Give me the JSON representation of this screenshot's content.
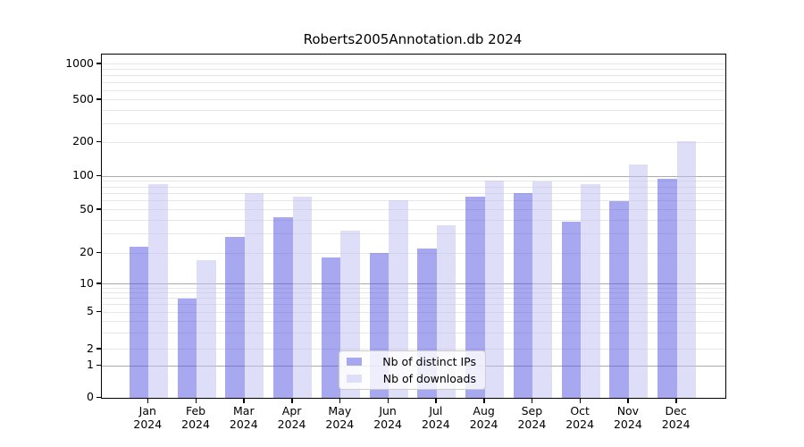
{
  "figure": {
    "background": "#ffffff"
  },
  "chart_data": {
    "type": "bar",
    "title": "Roberts2005Annotation.db 2024",
    "categories": [
      "Jan",
      "Feb",
      "Mar",
      "Apr",
      "May",
      "Jun",
      "Jul",
      "Aug",
      "Sep",
      "Oct",
      "Nov",
      "Dec"
    ],
    "x_tick_second_line": "2024",
    "series": [
      {
        "name": "Nb of distinct IPs",
        "swatch_color": "#a8a8f0",
        "fill": "rgba(81,81,225,0.5)",
        "values": [
          23,
          7,
          28,
          43,
          18,
          20,
          22,
          65,
          70,
          39,
          60,
          95
        ]
      },
      {
        "name": "Nb of downloads",
        "swatch_color": "#dedef8",
        "fill": "rgba(189,189,241,0.5)",
        "values": [
          85,
          17,
          71,
          65,
          32,
          61,
          36,
          91,
          89,
          84,
          126,
          205
        ]
      }
    ],
    "y_scale": "symlog",
    "y_ticks": [
      0,
      1,
      2,
      5,
      10,
      20,
      50,
      100,
      200,
      500,
      1000
    ],
    "y_major_gridlines": [
      1,
      10,
      100
    ],
    "y_minor_gridlines": [
      2,
      3,
      4,
      5,
      6,
      7,
      8,
      9,
      20,
      30,
      40,
      50,
      60,
      70,
      80,
      90,
      200,
      300,
      400,
      500,
      600,
      700,
      800,
      900,
      1000
    ],
    "ylim": [
      0,
      1400
    ],
    "grid": true,
    "legend_position": "lower-center",
    "grid_major_color": "#ababab",
    "grid_minor_color": "#e7e7e7"
  }
}
